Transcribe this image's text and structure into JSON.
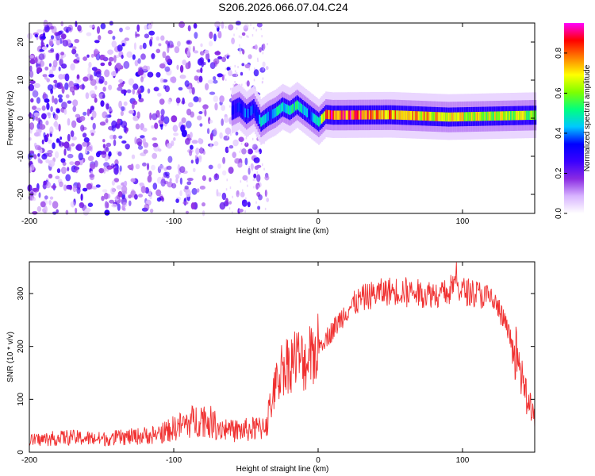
{
  "title": "S206.2026.066.07.04.C24",
  "chart_data": [
    {
      "type": "heatmap",
      "name": "spectrogram",
      "xlabel": "Height of straight line (km)",
      "ylabel": "Frequency (Hz)",
      "xlim": [
        -200,
        150
      ],
      "ylim": [
        -25,
        25
      ],
      "xticks": [
        -200,
        -100,
        0,
        100
      ],
      "yticks": [
        -20,
        -10,
        0,
        10,
        20
      ],
      "colorbar": {
        "label": "Normalized spectral amplitude",
        "range": [
          0,
          0.95
        ],
        "ticks": [
          0.0,
          0.2,
          0.4,
          0.6,
          0.8
        ],
        "tick_labels": [
          "0.0",
          "0.2",
          "0.4",
          "0.6",
          "0.8"
        ],
        "colors": [
          "#ffffff",
          "#d8b4ff",
          "#8a2be2",
          "#3a00ff",
          "#0000ff",
          "#00c8ff",
          "#00ff80",
          "#7fff00",
          "#ffff00",
          "#ff8000",
          "#ff0000",
          "#ff00ff"
        ]
      },
      "ridge": {
        "description": "dominant frequency band",
        "x": [
          -60,
          -55,
          -50,
          -45,
          -40,
          -35,
          -30,
          -25,
          -20,
          -15,
          -10,
          -5,
          0,
          5,
          10,
          50,
          90,
          150
        ],
        "freq": [
          2.0,
          3.0,
          1.0,
          2.5,
          -1.0,
          0.5,
          1.5,
          3.0,
          2.0,
          3.5,
          2.0,
          0.5,
          -1.0,
          1.0,
          0.8,
          0.9,
          0.3,
          0.8
        ],
        "amplitude": [
          0.3,
          0.35,
          0.4,
          0.35,
          0.45,
          0.4,
          0.45,
          0.5,
          0.5,
          0.5,
          0.45,
          0.4,
          0.5,
          0.85,
          0.9,
          0.8,
          0.7,
          0.65
        ]
      },
      "noise_region": {
        "x": [
          -200,
          -35
        ],
        "freq_range": [
          -25,
          25
        ],
        "amplitude_range": [
          0.05,
          0.3
        ]
      }
    },
    {
      "type": "line",
      "name": "snr",
      "xlabel": "Height of straight line (km)",
      "ylabel": "SNR (10 * v/v)",
      "xlim": [
        -200,
        150
      ],
      "ylim": [
        0,
        360
      ],
      "xticks": [
        -200,
        -100,
        0,
        100
      ],
      "yticks": [
        0,
        100,
        200,
        300
      ],
      "color": "#f03030",
      "series": [
        {
          "name": "SNR",
          "x": [
            -200,
            -175,
            -150,
            -125,
            -110,
            -100,
            -90,
            -80,
            -70,
            -60,
            -50,
            -40,
            -35,
            -30,
            -25,
            -20,
            -15,
            -10,
            -5,
            0,
            10,
            20,
            30,
            40,
            50,
            60,
            70,
            80,
            90,
            94,
            100,
            110,
            120,
            125,
            130,
            135,
            140,
            145,
            150
          ],
          "y": [
            22,
            28,
            25,
            30,
            35,
            45,
            55,
            65,
            50,
            40,
            42,
            45,
            60,
            120,
            160,
            170,
            180,
            170,
            180,
            200,
            230,
            270,
            290,
            300,
            305,
            305,
            300,
            300,
            300,
            320,
            305,
            300,
            290,
            270,
            240,
            200,
            150,
            100,
            55
          ]
        }
      ]
    }
  ]
}
